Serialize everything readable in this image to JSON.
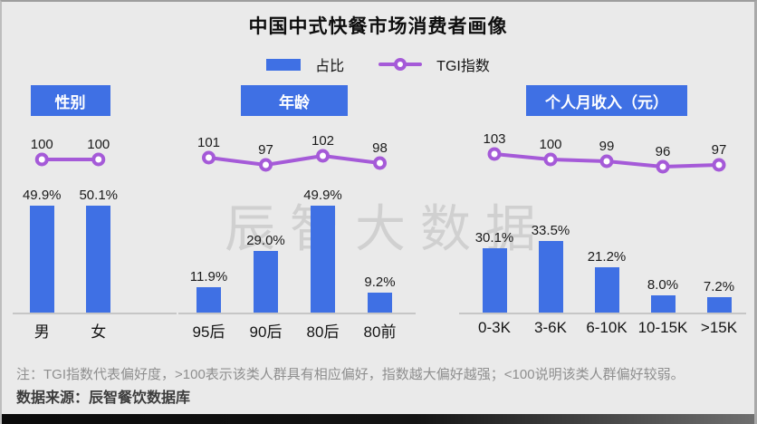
{
  "title": "中国中式快餐市场消费者画像",
  "legend": {
    "bar_label": "占比",
    "line_label": "TGI指数"
  },
  "watermark": "辰智大数据",
  "footer": {
    "note": "注：TGI指数代表偏好度，>100表示该类人群具有相应偏好，指数越大偏好越强；<100说明该类人群偏好较弱。",
    "source": "数据来源：辰智餐饮数据库"
  },
  "colors": {
    "bar_blue": "#3f70e4",
    "tgi_purple": "#a55ad8",
    "background": "#eaeaea",
    "watermark_gray": "#d0d0d0",
    "axis_gray": "#c6c6c6"
  },
  "chart_data": [
    {
      "type": "bar",
      "title": "性别",
      "categories": [
        "男",
        "女"
      ],
      "data_labels": true,
      "legend_position": "top",
      "grid": false,
      "series": [
        {
          "name": "占比",
          "unit": "%",
          "values": [
            49.9,
            50.1
          ]
        },
        {
          "name": "TGI指数",
          "type": "line",
          "values": [
            100,
            100
          ]
        }
      ]
    },
    {
      "type": "bar",
      "title": "年龄",
      "categories": [
        "95后",
        "90后",
        "80后",
        "80前"
      ],
      "data_labels": true,
      "legend_position": "top",
      "grid": false,
      "series": [
        {
          "name": "占比",
          "unit": "%",
          "values": [
            11.9,
            29.0,
            49.9,
            9.2
          ]
        },
        {
          "name": "TGI指数",
          "type": "line",
          "values": [
            101,
            97,
            102,
            98
          ]
        }
      ]
    },
    {
      "type": "bar",
      "title": "个人月收入（元）",
      "categories": [
        "0-3K",
        "3-6K",
        "6-10K",
        "10-15K",
        ">15K"
      ],
      "data_labels": true,
      "legend_position": "top",
      "grid": false,
      "series": [
        {
          "name": "占比",
          "unit": "%",
          "values": [
            30.1,
            33.5,
            21.2,
            8.0,
            7.2
          ]
        },
        {
          "name": "TGI指数",
          "type": "line",
          "values": [
            103,
            100,
            99,
            96,
            97
          ]
        }
      ]
    }
  ]
}
